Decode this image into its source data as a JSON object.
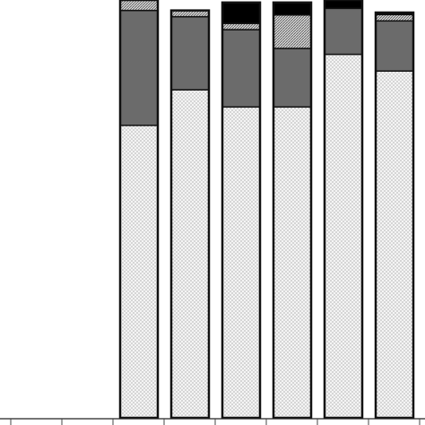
{
  "chart_data": {
    "type": "bar",
    "stacked": true,
    "orientation": "vertical",
    "title": "",
    "xlabel": "",
    "ylabel": "",
    "ylim": [
      0,
      100
    ],
    "grid": false,
    "legend": "none",
    "categories": [
      "",
      "",
      "",
      "",
      "",
      "",
      ""
    ],
    "series": [
      {
        "pattern": "dotted",
        "fill": "#f2f2f2",
        "values": [
          0,
          70.0,
          78.5,
          74.4,
          74.4,
          87.0,
          83.0
        ]
      },
      {
        "pattern": "solid-gray",
        "fill": "#6b6b6b",
        "values": [
          0,
          27.5,
          17.5,
          18.5,
          14.0,
          11.0,
          12.0
        ]
      },
      {
        "pattern": "hatched",
        "fill": "#c8c8c8",
        "values": [
          0,
          2.5,
          1.5,
          1.5,
          8.0,
          0.0,
          1.5
        ]
      },
      {
        "pattern": "solid-black",
        "fill": "#000000",
        "values": [
          0,
          0.0,
          0.0,
          5.0,
          3.0,
          2.0,
          0.5
        ]
      }
    ]
  }
}
